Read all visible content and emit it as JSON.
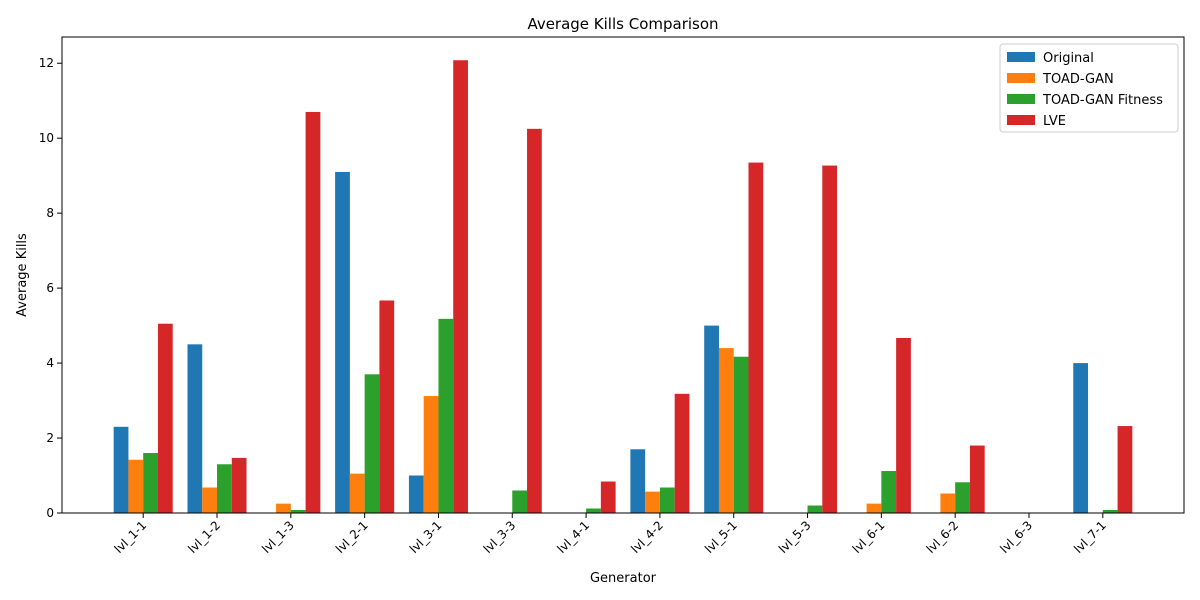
{
  "chart_data": {
    "type": "bar",
    "title": "Average Kills Comparison",
    "xlabel": "Generator",
    "ylabel": "Average Kills",
    "ylim": [
      0,
      12.7
    ],
    "yticks": [
      0,
      2,
      4,
      6,
      8,
      10,
      12
    ],
    "grid": false,
    "legend_position": "top-right",
    "categories": [
      "lvl_1-1",
      "lvl_1-2",
      "lvl_1-3",
      "lvl_2-1",
      "lvl_3-1",
      "lvl_3-3",
      "lvl_4-1",
      "lvl_4-2",
      "lvl_5-1",
      "lvl_5-3",
      "lvl_6-1",
      "lvl_6-2",
      "lvl_6-3",
      "lvl_7-1"
    ],
    "series": [
      {
        "name": "Original",
        "color": "#1f77b4",
        "values": [
          2.3,
          4.5,
          0,
          9.1,
          1.0,
          0,
          0,
          1.7,
          5.0,
          0,
          0,
          0,
          0,
          4.0
        ]
      },
      {
        "name": "TOAD-GAN",
        "color": "#ff7f0e",
        "values": [
          1.42,
          0.68,
          0.25,
          1.05,
          3.12,
          0,
          0,
          0.57,
          4.4,
          0,
          0.25,
          0.52,
          0,
          0
        ]
      },
      {
        "name": "TOAD-GAN Fitness",
        "color": "#2ca02c",
        "values": [
          1.6,
          1.3,
          0.08,
          3.7,
          5.18,
          0.6,
          0.12,
          0.68,
          4.17,
          0.2,
          1.12,
          0.82,
          0,
          0.08
        ]
      },
      {
        "name": "LVE",
        "color": "#d62728",
        "values": [
          5.05,
          1.47,
          10.7,
          5.67,
          12.08,
          10.25,
          0.84,
          3.18,
          9.35,
          9.27,
          4.67,
          1.8,
          0,
          2.32
        ]
      }
    ]
  }
}
